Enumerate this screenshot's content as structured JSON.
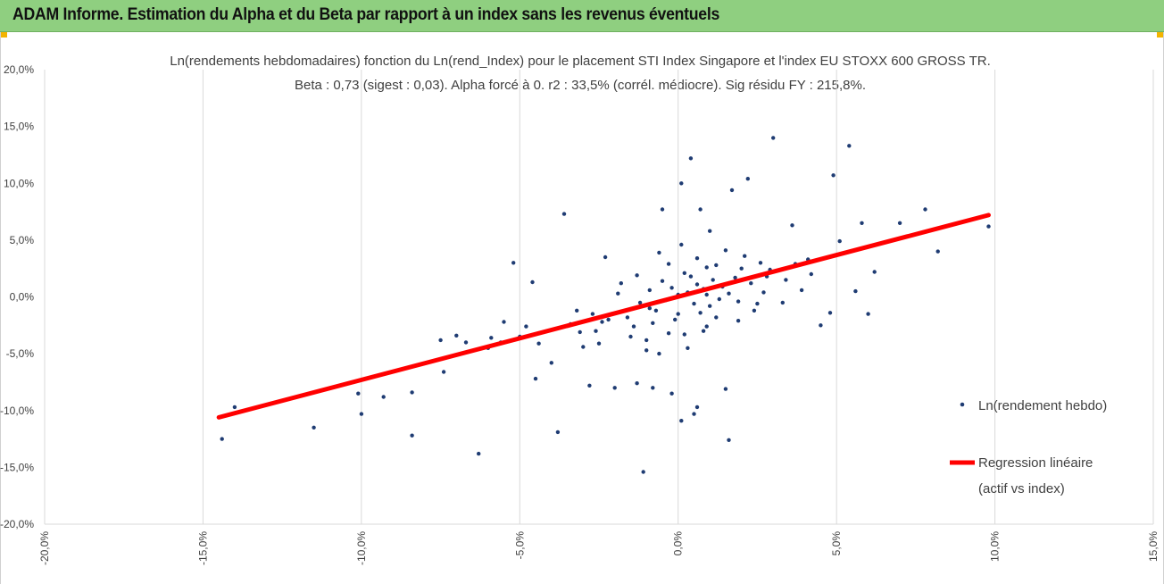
{
  "header": {
    "title": "ADAM Informe. Estimation du Alpha et du Beta par rapport à un index sans les revenus éventuels"
  },
  "colors": {
    "header_bg": "#8fcf80",
    "points": "#1f3c73",
    "regression": "#ff0000",
    "grid": "#d9d9d9",
    "accent": "#f3b400"
  },
  "chart_data": {
    "type": "scatter",
    "title": "Ln(rendements hebdomadaires) fonction du Ln(rend_Index) pour le placement STI Index Singapore et l'index EU STOXX 600 GROSS TR.",
    "subtitle": "Beta : 0,73 (sigest : 0,03). Alpha forcé à 0. r2 : 33,5% (corrél. médiocre). Sig résidu FY : 215,8%.",
    "xlim": [
      -20,
      15
    ],
    "ylim": [
      -20,
      20
    ],
    "x_ticks": [
      "-20,0%",
      "-15,0%",
      "-10,0%",
      "-5,0%",
      "0,0%",
      "5,0%",
      "10,0%",
      "15,0%"
    ],
    "y_ticks": [
      "20,0%",
      "15,0%",
      "10,0%",
      "5,0%",
      "0,0%",
      "-5,0%",
      "-10,0%",
      "-15,0%",
      "-20,0%"
    ],
    "grid": "vertical",
    "legend_position": "right",
    "series": [
      {
        "name": "Ln(rendement hebdo)",
        "kind": "scatter",
        "points": [
          [
            -14.4,
            -12.5
          ],
          [
            -14.0,
            -9.7
          ],
          [
            -11.5,
            -11.5
          ],
          [
            -10.0,
            -10.3
          ],
          [
            -10.1,
            -8.5
          ],
          [
            -9.3,
            -8.8
          ],
          [
            -8.4,
            -12.2
          ],
          [
            -8.4,
            -8.4
          ],
          [
            -7.4,
            -6.6
          ],
          [
            -7.5,
            -3.8
          ],
          [
            -7.0,
            -3.4
          ],
          [
            -6.3,
            -13.8
          ],
          [
            -6.7,
            -4.0
          ],
          [
            -6.0,
            -4.5
          ],
          [
            -5.9,
            -3.6
          ],
          [
            -5.6,
            -4.0
          ],
          [
            -5.5,
            -2.2
          ],
          [
            -5.2,
            3.0
          ],
          [
            -5.0,
            -3.5
          ],
          [
            -4.8,
            -2.6
          ],
          [
            -4.6,
            1.3
          ],
          [
            -4.5,
            -7.2
          ],
          [
            -4.4,
            -4.1
          ],
          [
            -4.0,
            -5.8
          ],
          [
            -3.8,
            -11.9
          ],
          [
            -3.6,
            7.3
          ],
          [
            -3.4,
            -2.4
          ],
          [
            -3.2,
            -1.2
          ],
          [
            -3.0,
            -4.4
          ],
          [
            -2.8,
            -7.8
          ],
          [
            -2.6,
            -3.0
          ],
          [
            -2.4,
            -2.2
          ],
          [
            -2.3,
            3.5
          ],
          [
            -2.1,
            -1.5
          ],
          [
            -2.0,
            -8.0
          ],
          [
            -1.8,
            1.2
          ],
          [
            -1.5,
            -3.5
          ],
          [
            -1.3,
            -7.6
          ],
          [
            -1.1,
            -15.4
          ],
          [
            -1.0,
            -4.7
          ],
          [
            -0.9,
            -1.0
          ],
          [
            -0.8,
            -8.0
          ],
          [
            -0.6,
            -5.0
          ],
          [
            -0.5,
            7.7
          ],
          [
            -0.3,
            -3.2
          ],
          [
            -0.2,
            -8.5
          ],
          [
            0.0,
            -1.5
          ],
          [
            0.1,
            10.0
          ],
          [
            0.1,
            -10.9
          ],
          [
            0.3,
            -4.5
          ],
          [
            0.4,
            12.2
          ],
          [
            0.5,
            -10.3
          ],
          [
            0.6,
            -9.7
          ],
          [
            0.7,
            7.7
          ],
          [
            0.8,
            -3.0
          ],
          [
            0.9,
            2.6
          ],
          [
            1.0,
            5.8
          ],
          [
            1.2,
            -1.8
          ],
          [
            1.5,
            -8.1
          ],
          [
            1.6,
            -12.6
          ],
          [
            1.7,
            9.4
          ],
          [
            1.9,
            -2.1
          ],
          [
            2.1,
            3.6
          ],
          [
            2.2,
            10.4
          ],
          [
            2.5,
            -0.6
          ],
          [
            2.8,
            1.8
          ],
          [
            3.0,
            14.0
          ],
          [
            3.3,
            -0.5
          ],
          [
            3.6,
            6.3
          ],
          [
            3.9,
            0.6
          ],
          [
            4.2,
            2.0
          ],
          [
            4.5,
            -2.5
          ],
          [
            4.8,
            -1.4
          ],
          [
            4.9,
            10.7
          ],
          [
            5.1,
            4.9
          ],
          [
            5.4,
            13.3
          ],
          [
            5.6,
            0.5
          ],
          [
            5.8,
            6.5
          ],
          [
            6.0,
            -1.5
          ],
          [
            6.2,
            2.2
          ],
          [
            7.0,
            6.5
          ],
          [
            7.8,
            7.7
          ],
          [
            8.2,
            4.0
          ],
          [
            9.8,
            6.2
          ],
          [
            -0.2,
            0.8
          ],
          [
            0.3,
            0.4
          ],
          [
            0.6,
            1.1
          ],
          [
            -0.4,
            -0.3
          ],
          [
            0.9,
            0.2
          ],
          [
            1.1,
            1.5
          ],
          [
            -0.7,
            -1.2
          ],
          [
            0.5,
            -0.6
          ],
          [
            1.4,
            0.9
          ],
          [
            -1.2,
            -0.5
          ],
          [
            0.2,
            2.1
          ],
          [
            -0.1,
            -2.0
          ],
          [
            1.8,
            1.7
          ],
          [
            0.7,
            -1.4
          ],
          [
            -0.9,
            0.6
          ],
          [
            1.3,
            -0.2
          ],
          [
            2.0,
            2.5
          ],
          [
            -1.6,
            -1.8
          ],
          [
            0.4,
            1.8
          ],
          [
            -0.5,
            1.4
          ],
          [
            0.8,
            0.7
          ],
          [
            1.6,
            0.3
          ],
          [
            -1.4,
            -2.6
          ],
          [
            2.3,
            1.2
          ],
          [
            -0.8,
            -2.3
          ],
          [
            0.0,
            0.2
          ],
          [
            1.0,
            -0.8
          ],
          [
            -2.2,
            -2.0
          ],
          [
            2.6,
            3.0
          ],
          [
            -0.3,
            2.9
          ],
          [
            1.9,
            -0.4
          ],
          [
            0.6,
            3.4
          ],
          [
            -1.9,
            0.3
          ],
          [
            2.9,
            2.4
          ],
          [
            -1.0,
            -3.8
          ],
          [
            3.4,
            1.5
          ],
          [
            1.2,
            2.8
          ],
          [
            -2.7,
            -1.5
          ],
          [
            0.2,
            -3.3
          ],
          [
            2.4,
            -1.2
          ],
          [
            -1.3,
            1.9
          ],
          [
            3.7,
            2.9
          ],
          [
            0.9,
            -2.6
          ],
          [
            -2.5,
            -4.1
          ],
          [
            1.5,
            4.1
          ],
          [
            -0.6,
            3.9
          ],
          [
            4.1,
            3.3
          ],
          [
            -3.1,
            -3.1
          ],
          [
            2.7,
            0.4
          ],
          [
            0.1,
            4.6
          ]
        ]
      },
      {
        "name": "Regression linéaire",
        "name_line2": "(actif vs index)",
        "kind": "line",
        "points": [
          [
            -14.5,
            -10.6
          ],
          [
            9.8,
            7.2
          ]
        ]
      }
    ]
  }
}
